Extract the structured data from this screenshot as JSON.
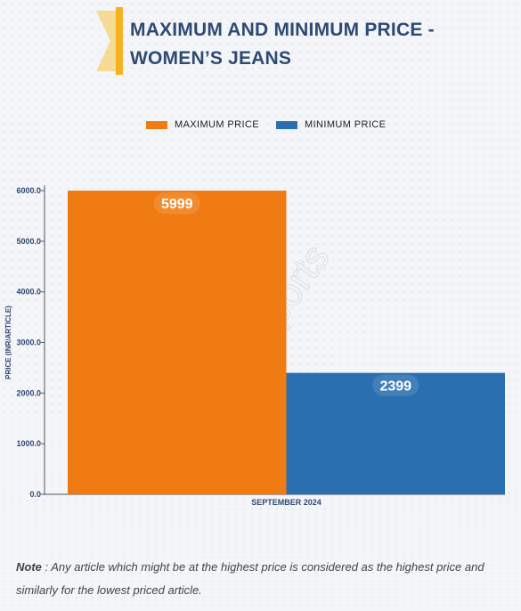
{
  "title_line1": "MAXIMUM AND MINIMUM PRICE -",
  "title_line2": "WOMEN’S JEANS",
  "watermark": "D&J Reports",
  "note": {
    "label": "Note",
    "text": " : Any article which might be at the highest price is considered as the highest price and similarly for the lowest priced article."
  },
  "chart_data": {
    "type": "bar",
    "categories": [
      "SEPTEMBER 2024"
    ],
    "series": [
      {
        "name": "MAXIMUM PRICE",
        "values": [
          5999
        ],
        "color": "#f07b12"
      },
      {
        "name": "MINIMUM PRICE",
        "values": [
          2399
        ],
        "color": "#2a6fb0"
      }
    ],
    "ylabel": "PRICE (INR/ARTICLE)",
    "xlabel": "",
    "ylim": [
      0,
      6000
    ],
    "yticks": [
      "0.0",
      "1000.0",
      "2000.0",
      "3000.0",
      "4000.0",
      "5000.0",
      "6000.0"
    ],
    "ytick_values": [
      0,
      1000,
      2000,
      3000,
      4000,
      5000,
      6000
    ],
    "legend_position": "top-center",
    "grid": false,
    "data_labels": [
      "5999",
      "2399"
    ]
  }
}
